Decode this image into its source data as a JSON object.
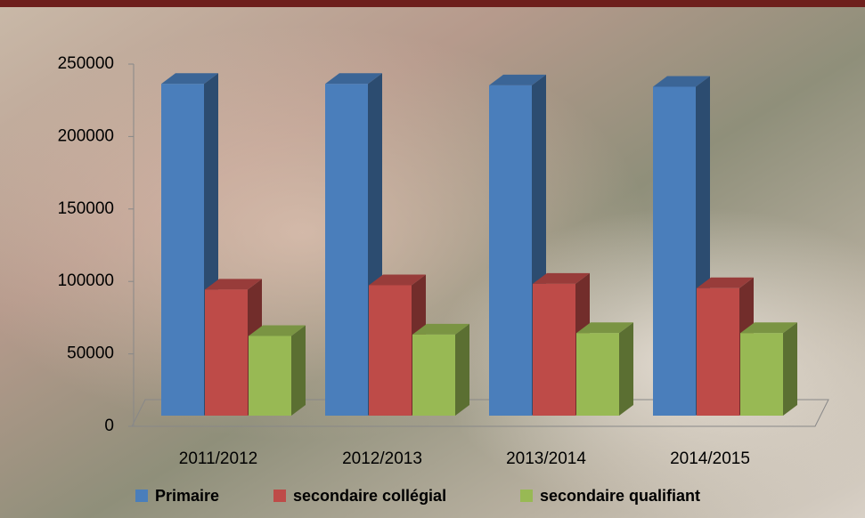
{
  "chart_data": {
    "type": "bar3d",
    "categories": [
      "2011/2012",
      "2012/2013",
      "2013/2014",
      "2014/2015"
    ],
    "series": [
      {
        "name": "Primaire",
        "color": "#4a7ebb",
        "values": [
          229000,
          229000,
          228000,
          227000
        ]
      },
      {
        "name": "secondaire collégial",
        "color": "#be4b48",
        "values": [
          87000,
          90000,
          91000,
          88000
        ]
      },
      {
        "name": "secondaire qualifiant",
        "color": "#98b954",
        "values": [
          55000,
          56000,
          57000,
          57000
        ]
      }
    ],
    "ylim": [
      0,
      250000
    ],
    "yticks": [
      0,
      50000,
      100000,
      150000,
      200000,
      250000
    ],
    "legend": "bottom"
  }
}
